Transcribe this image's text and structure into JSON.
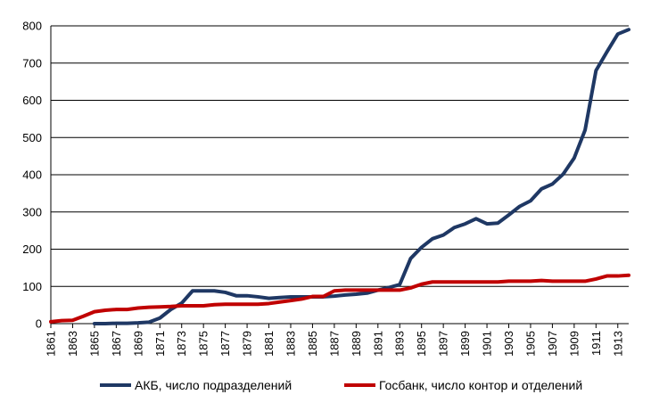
{
  "chart_data": {
    "type": "line",
    "title": "",
    "xlabel": "",
    "ylabel": "",
    "xlim": [
      1861,
      1914
    ],
    "ylim": [
      0,
      800
    ],
    "y_ticks": [
      0,
      100,
      200,
      300,
      400,
      500,
      600,
      700,
      800
    ],
    "x_ticks": [
      "1861",
      "1863",
      "1865",
      "1867",
      "1869",
      "1871",
      "1873",
      "1875",
      "1877",
      "1879",
      "1881",
      "1883",
      "1885",
      "1887",
      "1889",
      "1891",
      "1893",
      "1895",
      "1897",
      "1899",
      "1901",
      "1903",
      "1905",
      "1907",
      "1909",
      "1911",
      "1913"
    ],
    "grid": "horizontal",
    "legend_position": "bottom",
    "x": [
      1861,
      1862,
      1863,
      1864,
      1865,
      1866,
      1867,
      1868,
      1869,
      1870,
      1871,
      1872,
      1873,
      1874,
      1875,
      1876,
      1877,
      1878,
      1879,
      1880,
      1881,
      1882,
      1883,
      1884,
      1885,
      1886,
      1887,
      1888,
      1889,
      1890,
      1891,
      1892,
      1893,
      1894,
      1895,
      1896,
      1897,
      1898,
      1899,
      1900,
      1901,
      1902,
      1903,
      1904,
      1905,
      1906,
      1907,
      1908,
      1909,
      1910,
      1911,
      1912,
      1913,
      1914
    ],
    "series": [
      {
        "name": "АКБ, число подразделений",
        "color": "#1f3864",
        "values": [
          null,
          null,
          null,
          null,
          0,
          0,
          1,
          1,
          2,
          4,
          15,
          38,
          55,
          88,
          88,
          88,
          84,
          75,
          75,
          72,
          68,
          70,
          72,
          72,
          72,
          72,
          74,
          77,
          79,
          82,
          90,
          97,
          105,
          175,
          205,
          228,
          238,
          258,
          268,
          282,
          268,
          270,
          292,
          315,
          330,
          362,
          375,
          402,
          445,
          520,
          680,
          730,
          778,
          790
        ]
      },
      {
        "name": "Госбанк, число контор и отделений",
        "color": "#c00000",
        "values": [
          5,
          8,
          9,
          20,
          32,
          36,
          38,
          38,
          42,
          44,
          45,
          46,
          48,
          48,
          48,
          51,
          52,
          52,
          52,
          52,
          54,
          58,
          62,
          66,
          73,
          73,
          88,
          90,
          90,
          90,
          90,
          90,
          90,
          96,
          106,
          112,
          112,
          112,
          112,
          112,
          112,
          112,
          114,
          114,
          114,
          116,
          114,
          114,
          114,
          114,
          120,
          128,
          128,
          130
        ]
      }
    ]
  }
}
